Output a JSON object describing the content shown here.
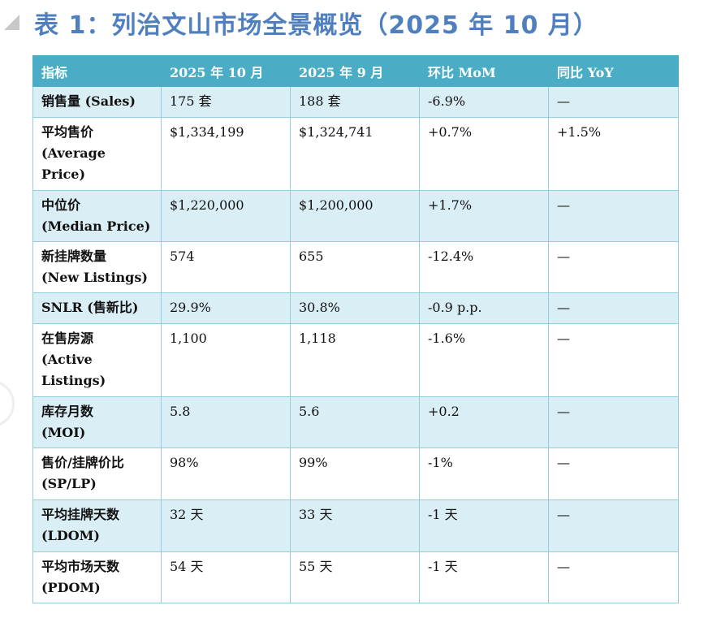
{
  "title": "表 1：列治文山市场全景概览（2025 年 10 月）",
  "headers": [
    "指标",
    "2025 年 10 月",
    "2025 年 9 月",
    "环比 MoM",
    "同比 YoY"
  ],
  "rows": [
    {
      "label": [
        "销售量 (Sales)"
      ],
      "oct": "175 套",
      "sep": "188 套",
      "mom": "-6.9%",
      "yoy": "—"
    },
    {
      "label": [
        "平均售价",
        "(Average",
        "Price)"
      ],
      "oct": "$1,334,199",
      "sep": "$1,324,741",
      "mom": "+0.7%",
      "yoy": "+1.5%"
    },
    {
      "label": [
        "中位价",
        "(Median Price)"
      ],
      "oct": "$1,220,000",
      "sep": "$1,200,000",
      "mom": "+1.7%",
      "yoy": "—"
    },
    {
      "label": [
        "新挂牌数量",
        "(New Listings)"
      ],
      "oct": "574",
      "sep": "655",
      "mom": "-12.4%",
      "yoy": "—"
    },
    {
      "label": [
        "SNLR (售新比)"
      ],
      "oct": "29.9%",
      "sep": "30.8%",
      "mom": "-0.9 p.p.",
      "yoy": "—"
    },
    {
      "label": [
        "在售房源",
        "(Active",
        "Listings)"
      ],
      "oct": "1,100",
      "sep": "1,118",
      "mom": "-1.6%",
      "yoy": "—"
    },
    {
      "label": [
        "库存月数",
        "(MOI)"
      ],
      "oct": "5.8",
      "sep": "5.6",
      "mom": "+0.2",
      "yoy": "—"
    },
    {
      "label": [
        "售价/挂牌价比",
        "(SP/LP)"
      ],
      "oct": "98%",
      "sep": "99%",
      "mom": "-1%",
      "yoy": "—"
    },
    {
      "label": [
        "平均挂牌天数",
        "(LDOM)"
      ],
      "oct": "32 天",
      "sep": "33 天",
      "mom": "-1 天",
      "yoy": "—"
    },
    {
      "label": [
        "平均市场天数",
        "(PDOM)"
      ],
      "oct": "54 天",
      "sep": "55 天",
      "mom": "-1 天",
      "yoy": "—"
    }
  ]
}
